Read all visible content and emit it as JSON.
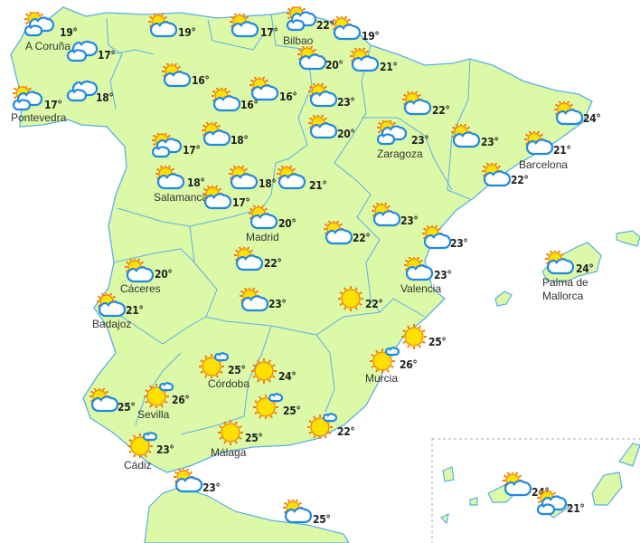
{
  "map": {
    "land_color": "#dcf9a8",
    "border_color": "#5aaee8",
    "cloud_stroke": "#1e88e5",
    "sun_color": "#ffe000",
    "sun_ray_color": "#f57c00"
  },
  "locations": [
    {
      "city": "A Coruña",
      "temp": "19°",
      "icon": "sun-clouds"
    },
    {
      "city": "",
      "temp": "17°",
      "icon": "clouds"
    },
    {
      "city": "Pontevedra",
      "temp": "17°",
      "icon": "sun-clouds"
    },
    {
      "city": "",
      "temp": "18°",
      "icon": "clouds"
    },
    {
      "city": "",
      "temp": "19°",
      "icon": "sun-cloud"
    },
    {
      "city": "",
      "temp": "17°",
      "icon": "sun-cloud"
    },
    {
      "city": "Bilbao",
      "temp": "22°",
      "icon": "sun-clouds"
    },
    {
      "city": "",
      "temp": "19°",
      "icon": "sun-cloud"
    },
    {
      "city": "",
      "temp": "16°",
      "icon": "sun-cloud"
    },
    {
      "city": "",
      "temp": "16°",
      "icon": "sun-cloud"
    },
    {
      "city": "",
      "temp": "16°",
      "icon": "sun-cloud"
    },
    {
      "city": "",
      "temp": "20°",
      "icon": "sun-cloud"
    },
    {
      "city": "",
      "temp": "21°",
      "icon": "sun-cloud"
    },
    {
      "city": "",
      "temp": "23°",
      "icon": "sun-cloud"
    },
    {
      "city": "",
      "temp": "20°",
      "icon": "sun-cloud"
    },
    {
      "city": "",
      "temp": "17°",
      "icon": "sun-clouds"
    },
    {
      "city": "",
      "temp": "18°",
      "icon": "sun-cloud"
    },
    {
      "city": "Salamanca",
      "temp": "18°",
      "icon": "sun-cloud"
    },
    {
      "city": "",
      "temp": "17°",
      "icon": "sun-cloud"
    },
    {
      "city": "",
      "temp": "18°",
      "icon": "sun-cloud"
    },
    {
      "city": "",
      "temp": "21°",
      "icon": "sun-cloud"
    },
    {
      "city": "Madrid",
      "temp": "20°",
      "icon": "sun-cloud"
    },
    {
      "city": "",
      "temp": "22°",
      "icon": "sun-cloud"
    },
    {
      "city": "Zaragoza",
      "temp": "23°",
      "icon": "sun-clouds"
    },
    {
      "city": "",
      "temp": "23°",
      "icon": "sun-cloud"
    },
    {
      "city": "",
      "temp": "24°",
      "icon": "sun-cloud"
    },
    {
      "city": "Barcelona",
      "temp": "21°",
      "icon": "sun-cloud"
    },
    {
      "city": "",
      "temp": "22°",
      "icon": "sun-cloud"
    },
    {
      "city": "",
      "temp": "23°",
      "icon": "sun-cloud"
    },
    {
      "city": "",
      "temp": "22°",
      "icon": "sun-cloud"
    },
    {
      "city": "",
      "temp": "23°",
      "icon": "sun-cloud"
    },
    {
      "city": "Valencia",
      "temp": "23°",
      "icon": "sun-cloud"
    },
    {
      "city": "Palma de Mallorca",
      "temp": "24°",
      "icon": "sun-cloud"
    },
    {
      "city": "",
      "temp": "22°",
      "icon": "sun-cloud"
    },
    {
      "city": "Cáceres",
      "temp": "20°",
      "icon": "sun-cloud"
    },
    {
      "city": "Badajoz",
      "temp": "21°",
      "icon": "sun-cloud"
    },
    {
      "city": "",
      "temp": "23°",
      "icon": "sun-cloud"
    },
    {
      "city": "",
      "temp": "22°",
      "icon": "sun"
    },
    {
      "city": "",
      "temp": "25°",
      "icon": "sun"
    },
    {
      "city": "Murcia",
      "temp": "26°",
      "icon": "sun-small-cloud"
    },
    {
      "city": "Córdoba",
      "temp": "25°",
      "icon": "sun-small-cloud"
    },
    {
      "city": "",
      "temp": "24°",
      "icon": "sun"
    },
    {
      "city": "",
      "temp": "25°",
      "icon": "sun-cloud"
    },
    {
      "city": "Sevilla",
      "temp": "26°",
      "icon": "sun-small-cloud"
    },
    {
      "city": "",
      "temp": "25°",
      "icon": "sun-small-cloud"
    },
    {
      "city": "",
      "temp": "22°",
      "icon": "sun-small-cloud"
    },
    {
      "city": "Málaga",
      "temp": "25°",
      "icon": "sun"
    },
    {
      "city": "Cádiz",
      "temp": "23°",
      "icon": "sun-small-cloud"
    },
    {
      "city": "",
      "temp": "23°",
      "icon": "sun-cloud"
    },
    {
      "city": "",
      "temp": "25°",
      "icon": "sun-cloud"
    },
    {
      "city": "",
      "temp": "24°",
      "icon": "sun-cloud"
    },
    {
      "city": "",
      "temp": "21°",
      "icon": "sun-clouds"
    }
  ]
}
